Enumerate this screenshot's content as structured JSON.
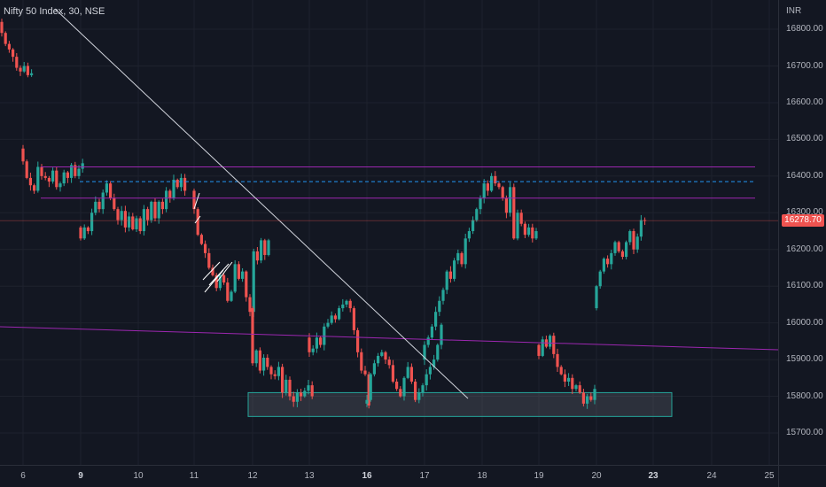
{
  "header": {
    "symbol_title": "Nifty 50 Index, 30, NSE",
    "currency": "INR"
  },
  "colors": {
    "background": "#131722",
    "up": "#26a69a",
    "down": "#ef5350",
    "support_zone": "#26a69a",
    "channel": "#9c27b0",
    "trendline": "#d1d4dc",
    "dashed_level": "#2196f3",
    "current_price_bg": "#ef5350"
  },
  "chart_data": {
    "type": "candlestick",
    "title": "Nifty 50 Index, 30, NSE",
    "ylabel": "INR",
    "ylim": [
      15640,
      16850
    ],
    "yticks": [
      15700,
      15800,
      15900,
      16000,
      16100,
      16200,
      16300,
      16400,
      16500,
      16600,
      16700,
      16800
    ],
    "ytick_labels": [
      "15700.00",
      "15800.00",
      "15900.00",
      "16000.00",
      "16100.00",
      "16200.00",
      "16300.00",
      "16400.00",
      "16500.00",
      "16600.00",
      "16700.00",
      "16800.00"
    ],
    "xticks": [
      {
        "label": "6",
        "bold": false
      },
      {
        "label": "9",
        "bold": true
      },
      {
        "label": "10",
        "bold": false
      },
      {
        "label": "11",
        "bold": false
      },
      {
        "label": "12",
        "bold": false
      },
      {
        "label": "13",
        "bold": false
      },
      {
        "label": "16",
        "bold": true
      },
      {
        "label": "17",
        "bold": false
      },
      {
        "label": "18",
        "bold": false
      },
      {
        "label": "19",
        "bold": false
      },
      {
        "label": "20",
        "bold": false
      },
      {
        "label": "23",
        "bold": true
      },
      {
        "label": "24",
        "bold": false
      },
      {
        "label": "25",
        "bold": false
      }
    ],
    "current_price": 16278.7,
    "current_price_label": "16278.70",
    "segments": [
      {
        "session": "6",
        "start": 16820,
        "closes": [
          16790,
          16760,
          16745,
          16725,
          16695,
          16685,
          16700,
          16675,
          16680
        ]
      },
      {
        "session": "prev",
        "start": 16475,
        "closes": [
          16440,
          16395,
          16375,
          16360,
          16425,
          16400,
          16395,
          16385,
          16415,
          16370,
          16380,
          16410,
          16395,
          16430,
          16400,
          16420,
          16435
        ]
      },
      {
        "session": "9",
        "start": 16260,
        "closes": [
          16230,
          16260,
          16250,
          16300,
          16330,
          16310,
          16355,
          16380,
          16340,
          16310,
          16280,
          16305,
          16260,
          16290,
          16255,
          16285,
          16250,
          16310,
          16280,
          16330,
          16285,
          16330,
          16310,
          16360,
          16340,
          16390,
          16370,
          16395,
          16360
        ]
      },
      {
        "session": "11",
        "start": 16360,
        "closes": [
          16310,
          16240,
          16215,
          16190,
          16150,
          16130,
          16095,
          16130,
          16110,
          16060,
          16085,
          16160,
          16120,
          16140,
          16070,
          16030,
          16195,
          16170,
          16225,
          16185,
          16225
        ]
      },
      {
        "session": "12",
        "start": 16040,
        "closes": [
          15890,
          15925,
          15870,
          15905,
          15880,
          15860,
          15855,
          15880,
          15810,
          15845,
          15800,
          15785,
          15810,
          15800,
          15815,
          15830,
          15800
        ]
      },
      {
        "session": "13",
        "start": 15960,
        "closes": [
          15920,
          15930,
          15960,
          15940,
          15990,
          16000,
          16020,
          16010,
          16040,
          16050,
          16060,
          16040,
          15980,
          15920,
          15870,
          15860,
          15775
        ]
      },
      {
        "session": "16",
        "start": 15780,
        "closes": [
          15790,
          15860,
          15890,
          15910,
          15920,
          15900,
          15885,
          15840,
          15820,
          15800,
          15850,
          15880,
          15840,
          15790,
          15810,
          15830,
          15860,
          15880,
          15900,
          15940,
          15995
        ]
      },
      {
        "session": "17",
        "start": 15900,
        "closes": [
          15940,
          15960,
          15990,
          16030,
          16060,
          16090,
          16140,
          16120,
          16170,
          16190,
          16160,
          16230,
          16250,
          16280,
          16310,
          16340,
          16380,
          16360,
          16400,
          16380,
          16370,
          16340,
          16300,
          16370,
          16230,
          16300,
          16270,
          16240,
          16260,
          16230,
          16250
        ]
      },
      {
        "session": "19",
        "start": 15940,
        "closes": [
          15910,
          15955,
          15935,
          15965,
          15915,
          15880,
          15860,
          15840,
          15850,
          15820,
          15830,
          15810,
          15780,
          15800,
          15790,
          15820
        ]
      },
      {
        "session": "20",
        "start": 16040,
        "closes": [
          16100,
          16140,
          16175,
          16160,
          16190,
          16220,
          16195,
          16180,
          16220,
          16250,
          16200,
          16235,
          16280,
          16278.7
        ]
      }
    ],
    "annotations": {
      "resistance_lines": [
        16425,
        16340
      ],
      "dashed_level": 16385,
      "support_zone": [
        15745,
        15810
      ],
      "descending_trendline": true,
      "lower_channel_line": true
    }
  }
}
